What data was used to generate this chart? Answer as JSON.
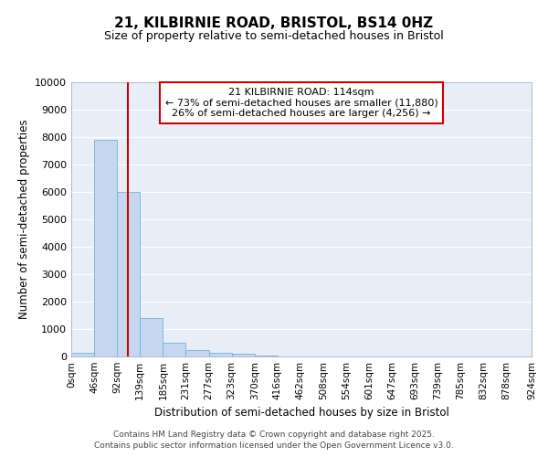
{
  "title1": "21, KILBIRNIE ROAD, BRISTOL, BS14 0HZ",
  "title2": "Size of property relative to semi-detached houses in Bristol",
  "xlabel": "Distribution of semi-detached houses by size in Bristol",
  "ylabel": "Number of semi-detached properties",
  "bin_edges": [
    0,
    46,
    92,
    138,
    184,
    230,
    276,
    322,
    368,
    414,
    460,
    506,
    552,
    598,
    644,
    690,
    736,
    782,
    828,
    874,
    924
  ],
  "bin_labels": [
    "0sqm",
    "46sqm",
    "92sqm",
    "139sqm",
    "185sqm",
    "231sqm",
    "277sqm",
    "323sqm",
    "370sqm",
    "416sqm",
    "462sqm",
    "508sqm",
    "554sqm",
    "601sqm",
    "647sqm",
    "693sqm",
    "739sqm",
    "785sqm",
    "832sqm",
    "878sqm",
    "924sqm"
  ],
  "bar_heights": [
    150,
    7900,
    6000,
    1400,
    500,
    250,
    150,
    100,
    50,
    10,
    5,
    3,
    2,
    1,
    0,
    0,
    0,
    0,
    0,
    0
  ],
  "bar_color": "#c5d8f0",
  "bar_edge_color": "#7aaed6",
  "property_size": 114,
  "red_line_color": "#cc0000",
  "annotation_line1": "21 KILBIRNIE ROAD: 114sqm",
  "annotation_line2": "← 73% of semi-detached houses are smaller (11,880)",
  "annotation_line3": "26% of semi-detached houses are larger (4,256) →",
  "annotation_box_color": "#cc0000",
  "ylim": [
    0,
    10000
  ],
  "yticks": [
    0,
    1000,
    2000,
    3000,
    4000,
    5000,
    6000,
    7000,
    8000,
    9000,
    10000
  ],
  "bg_color": "#e8eef8",
  "grid_color": "#ffffff",
  "footer1": "Contains HM Land Registry data © Crown copyright and database right 2025.",
  "footer2": "Contains public sector information licensed under the Open Government Licence v3.0."
}
